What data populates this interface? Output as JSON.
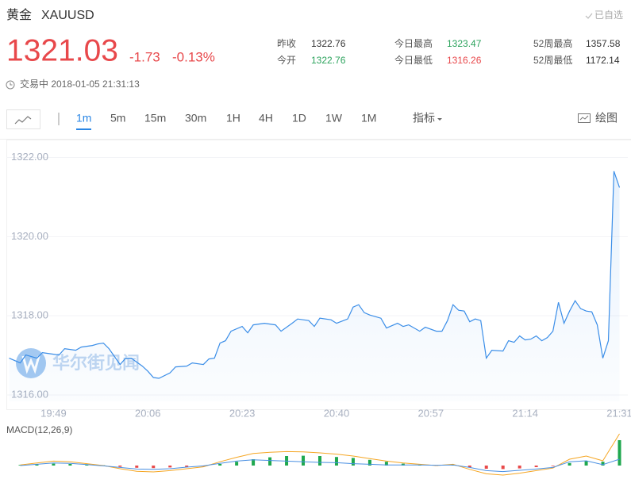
{
  "header": {
    "name": "黄金",
    "symbol": "XAUUSD",
    "watch": "已自选"
  },
  "quote": {
    "price": "1321.03",
    "change": "-1.73",
    "change_pct": "-0.13%",
    "status": "交易中 2018-01-05 21:31:13"
  },
  "stats": [
    {
      "label": "昨收",
      "value": "1322.76"
    },
    {
      "label": "今开",
      "value": "1322.76"
    },
    {
      "label": "今日最高",
      "value": "1323.47"
    },
    {
      "label": "今日最低",
      "value": "1316.26"
    },
    {
      "label": "52周最高",
      "value": "1357.58"
    },
    {
      "label": "52周最低",
      "value": "1172.14"
    }
  ],
  "toolbar": {
    "intervals": [
      "1m",
      "5m",
      "15m",
      "30m",
      "1H",
      "4H",
      "1D",
      "1W",
      "1M"
    ],
    "active": 0,
    "indicator": "指标",
    "draw": "绘图"
  },
  "watermark": "华尔街见闻",
  "chart_data": [
    {
      "type": "line",
      "color": "#3b8ee8",
      "area": true,
      "grid": true,
      "x": [
        1181,
        1183,
        1184,
        1186,
        1187,
        1188,
        1190,
        1191,
        1193,
        1194,
        1196,
        1197,
        1198,
        1199,
        1201,
        1202,
        1203,
        1205,
        1206,
        1207,
        1208,
        1210,
        1211,
        1213,
        1214,
        1216,
        1217,
        1218,
        1219,
        1220,
        1221,
        1223,
        1224,
        1225,
        1227,
        1229,
        1230,
        1232,
        1233,
        1235,
        1236,
        1237,
        1239,
        1240,
        1242,
        1243,
        1244,
        1245,
        1246,
        1248,
        1249,
        1251,
        1252,
        1253,
        1255,
        1256,
        1258,
        1259,
        1260,
        1261,
        1262,
        1263,
        1264,
        1265,
        1266,
        1267,
        1268,
        1270,
        1271,
        1272,
        1273,
        1274,
        1275,
        1276,
        1277,
        1278,
        1279,
        1280,
        1281,
        1282,
        1283,
        1284,
        1285,
        1286,
        1287,
        1288,
        1289,
        1290,
        1291
      ],
      "values": [
        1316.93,
        1316.81,
        1317.01,
        1316.93,
        1317.07,
        1317.05,
        1317.01,
        1317.17,
        1317.13,
        1317.21,
        1317.25,
        1317.29,
        1317.31,
        1317.17,
        1316.77,
        1316.93,
        1316.93,
        1316.73,
        1316.6,
        1316.44,
        1316.42,
        1316.56,
        1316.71,
        1316.73,
        1316.81,
        1316.77,
        1316.91,
        1316.93,
        1317.31,
        1317.37,
        1317.61,
        1317.73,
        1317.57,
        1317.77,
        1317.81,
        1317.77,
        1317.61,
        1317.81,
        1317.92,
        1317.88,
        1317.73,
        1317.94,
        1317.9,
        1317.81,
        1317.92,
        1318.22,
        1318.28,
        1318.08,
        1318.02,
        1317.94,
        1317.69,
        1317.81,
        1317.73,
        1317.77,
        1317.61,
        1317.71,
        1317.61,
        1317.61,
        1317.88,
        1318.28,
        1318.14,
        1318.12,
        1317.85,
        1317.92,
        1317.88,
        1316.93,
        1317.13,
        1317.11,
        1317.37,
        1317.33,
        1317.49,
        1317.39,
        1317.41,
        1317.49,
        1317.37,
        1317.45,
        1317.61,
        1318.34,
        1317.81,
        1318.12,
        1318.38,
        1318.18,
        1318.12,
        1318.1,
        1317.77,
        1316.93,
        1317.37,
        1321.65,
        1321.24
      ],
      "xlim": [
        1180.5,
        1292.5
      ],
      "xticks": [
        {
          "value": 1189,
          "label": "19:49"
        },
        {
          "value": 1206,
          "label": "20:06"
        },
        {
          "value": 1223,
          "label": "20:23"
        },
        {
          "value": 1240,
          "label": "20:40"
        },
        {
          "value": 1257,
          "label": "20:57"
        },
        {
          "value": 1274,
          "label": "21:14"
        },
        {
          "value": 1291,
          "label": "21:31"
        }
      ],
      "ylim": [
        1315.84,
        1322.41
      ],
      "yticks": [
        {
          "value": 1316,
          "label": "1316.00"
        },
        {
          "value": 1318,
          "label": "1318.00"
        },
        {
          "value": 1320,
          "label": "1320.00"
        },
        {
          "value": 1322,
          "label": "1322.00"
        }
      ]
    },
    {
      "type": "macd",
      "title": "MACD(12,26,9)",
      "x": [
        1183,
        1186,
        1189,
        1192,
        1195,
        1198,
        1201,
        1204,
        1207,
        1210,
        1213,
        1216,
        1219,
        1222,
        1225,
        1228,
        1231,
        1234,
        1237,
        1240,
        1243,
        1246,
        1249,
        1252,
        1255,
        1258,
        1261,
        1264,
        1267,
        1270,
        1273,
        1276,
        1279,
        1282,
        1285,
        1288,
        1291
      ],
      "xlim": [
        1180.5,
        1292.5
      ],
      "ylim": [
        -0.45,
        1.05
      ],
      "series": [
        {
          "kind": "bar",
          "color": "#1fa84f",
          "negative_color": "#e84a4a",
          "values": [
            0.02,
            0.04,
            0.06,
            0.05,
            0.03,
            0.01,
            -0.04,
            -0.07,
            -0.08,
            -0.06,
            -0.05,
            -0.03,
            0.05,
            0.12,
            0.2,
            0.26,
            0.3,
            0.31,
            0.3,
            0.27,
            0.24,
            0.18,
            0.12,
            0.06,
            0.02,
            -0.01,
            0.02,
            -0.06,
            -0.1,
            -0.11,
            -0.09,
            -0.05,
            -0.02,
            0.08,
            0.15,
            0.12,
            0.8
          ]
        },
        {
          "kind": "line",
          "color": "#f5a623",
          "values": [
            0.02,
            0.08,
            0.14,
            0.12,
            0.06,
            0.0,
            -0.1,
            -0.18,
            -0.2,
            -0.16,
            -0.1,
            -0.04,
            0.12,
            0.26,
            0.38,
            0.42,
            0.44,
            0.43,
            0.4,
            0.36,
            0.3,
            0.22,
            0.14,
            0.08,
            0.04,
            0.0,
            0.04,
            -0.12,
            -0.26,
            -0.3,
            -0.24,
            -0.16,
            -0.08,
            0.2,
            0.3,
            0.15,
            1.0
          ]
        },
        {
          "kind": "line",
          "color": "#4a90e2",
          "values": [
            0.0,
            0.04,
            0.08,
            0.07,
            0.03,
            -0.01,
            -0.06,
            -0.11,
            -0.12,
            -0.1,
            -0.05,
            -0.01,
            0.07,
            0.14,
            0.18,
            0.16,
            0.14,
            0.12,
            0.1,
            0.09,
            0.06,
            0.04,
            0.02,
            0.02,
            0.02,
            0.01,
            0.02,
            -0.06,
            -0.16,
            -0.19,
            -0.15,
            -0.11,
            -0.06,
            0.12,
            0.15,
            0.03,
            0.2
          ]
        }
      ]
    }
  ]
}
